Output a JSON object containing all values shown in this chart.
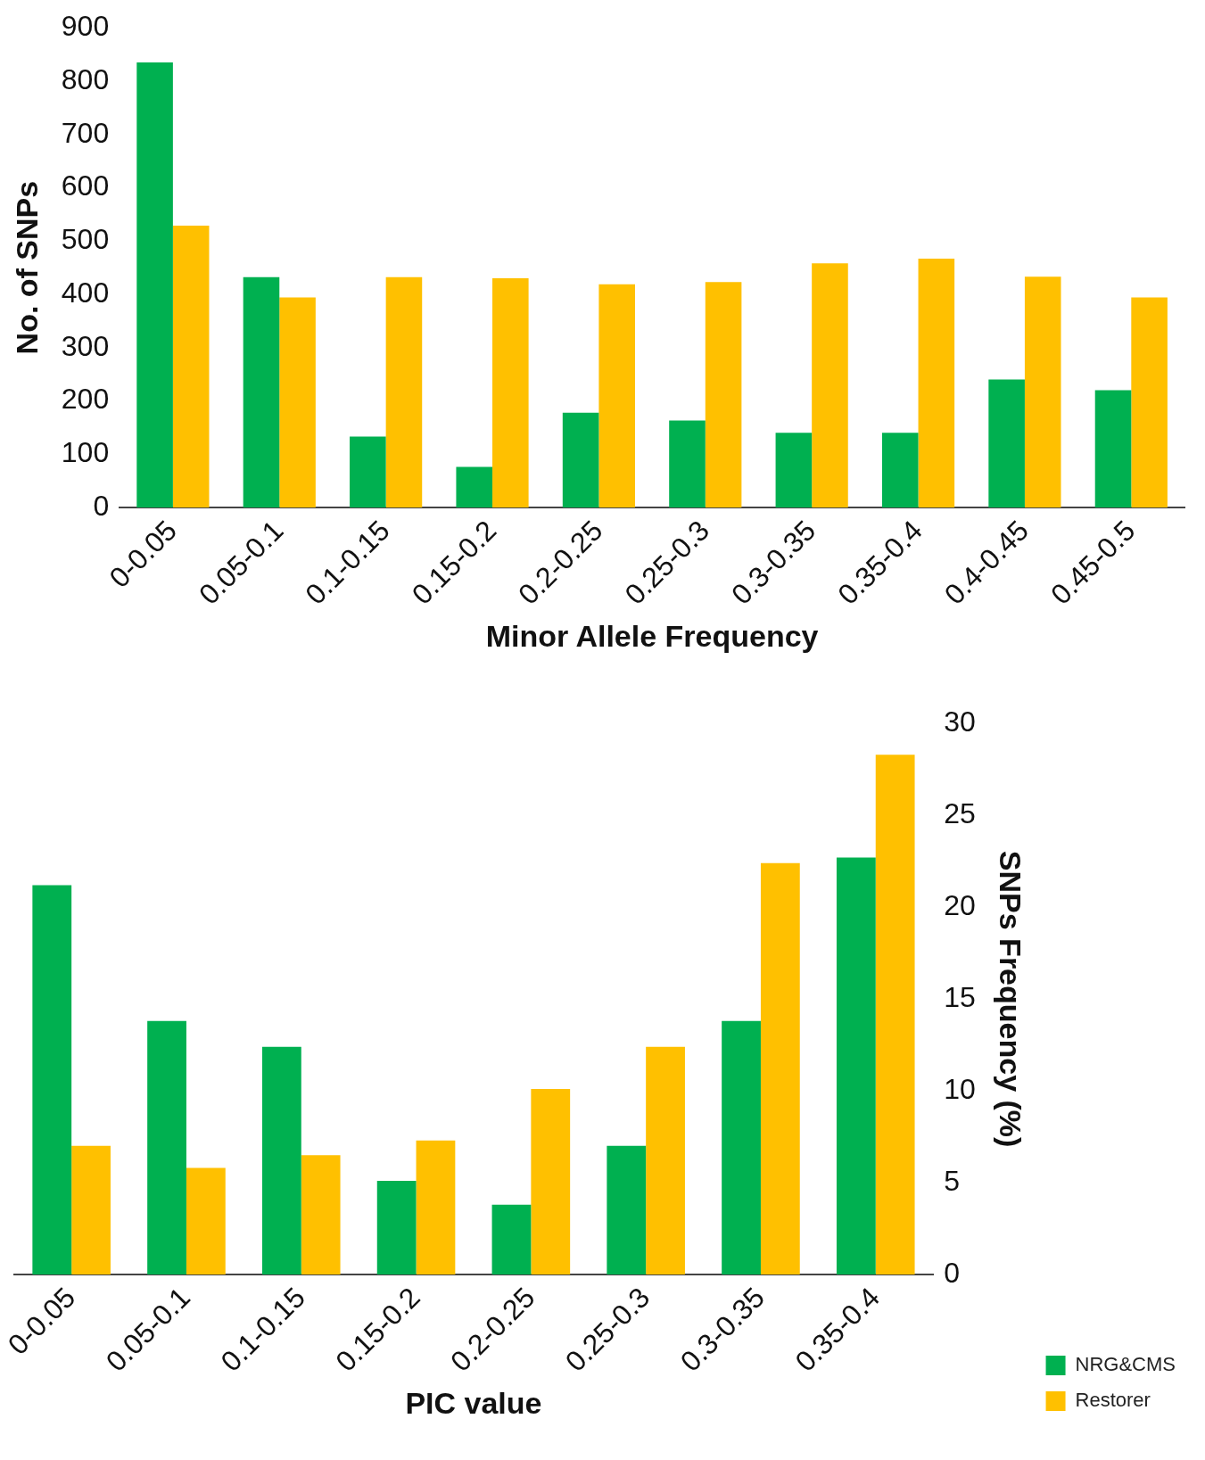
{
  "chart_data": [
    {
      "type": "bar",
      "xlabel": "Minor Allele Frequency",
      "ylabel": "No. of SNPs",
      "categories": [
        "0-0.05",
        "0.05-0.1",
        "0.1-0.15",
        "0.15-0.2",
        "0.2-0.25",
        "0.25-0.3",
        "0.3-0.35",
        "0.35-0.4",
        "0.4-0.45",
        "0.45-0.5"
      ],
      "series": [
        {
          "color": "#00b050",
          "values": [
            835,
            432,
            133,
            76,
            178,
            163,
            140,
            140,
            240,
            220
          ]
        },
        {
          "color": "#ffc000",
          "values": [
            529,
            394,
            432,
            430,
            419,
            423,
            458,
            467,
            433,
            394
          ]
        }
      ],
      "ylim": [
        0,
        900
      ],
      "yticks": [
        0,
        100,
        200,
        300,
        400,
        500,
        600,
        700,
        800,
        900
      ],
      "grid": false,
      "legend": false
    },
    {
      "type": "bar",
      "xlabel": "PIC value",
      "y2label": "SNPs Frequency (%)",
      "categories": [
        "0-0.05",
        "0.05-0.1",
        "0.1-0.15",
        "0.15-0.2",
        "0.2-0.25",
        "0.25-0.3",
        "0.3-0.35",
        "0.35-0.4"
      ],
      "series": [
        {
          "name": "NRG&CMS",
          "color": "#00b050",
          "axis": "y2",
          "values": [
            21.2,
            13.8,
            12.4,
            5.1,
            3.8,
            7.0,
            13.8,
            22.7
          ]
        },
        {
          "name": "Restorer",
          "color": "#ffc000",
          "axis": "y2",
          "values": [
            7.0,
            5.8,
            6.5,
            7.3,
            10.1,
            12.4,
            22.4,
            28.3
          ]
        }
      ],
      "y2lim": [
        0,
        30
      ],
      "y2ticks": [
        0,
        5,
        10,
        15,
        20,
        25,
        30
      ],
      "grid": false,
      "legend": "bottom right"
    }
  ]
}
